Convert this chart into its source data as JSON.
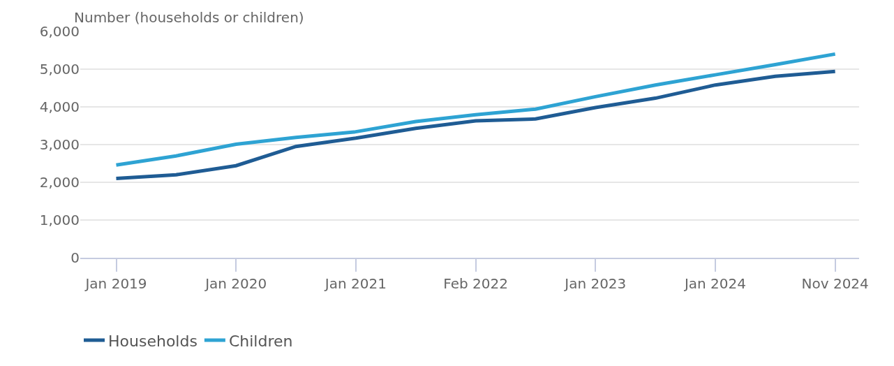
{
  "chart_data": {
    "type": "line",
    "ylabel": "Number (households or children)",
    "categories": [
      "Jan 2019",
      null,
      "Jan 2020",
      null,
      "Jan 2021",
      null,
      "Feb 2022",
      null,
      "Jan 2023",
      null,
      "Jan 2024",
      null,
      "Nov 2024"
    ],
    "series": [
      {
        "name": "Households",
        "color": "#1f5c94",
        "values": [
          2100,
          2200,
          2440,
          2950,
          3170,
          3430,
          3630,
          3680,
          3980,
          4230,
          4580,
          4810,
          4940
        ]
      },
      {
        "name": "Children",
        "color": "#2ea3d3",
        "values": [
          2460,
          2700,
          3010,
          3190,
          3340,
          3610,
          3790,
          3940,
          4270,
          4580,
          4850,
          5120,
          5400
        ]
      }
    ],
    "ylim": [
      0,
      6000
    ],
    "yticks": [
      {
        "value": 0,
        "label": "0"
      },
      {
        "value": 1000,
        "label": "1,000"
      },
      {
        "value": 2000,
        "label": "2,000"
      },
      {
        "value": 3000,
        "label": "3,000"
      },
      {
        "value": 4000,
        "label": "4,000"
      },
      {
        "value": 5000,
        "label": "5,000"
      },
      {
        "value": 6000,
        "label": "6,000"
      }
    ],
    "grid": "y",
    "legend": "bottom left",
    "marker": "none",
    "line_style": "solid"
  }
}
